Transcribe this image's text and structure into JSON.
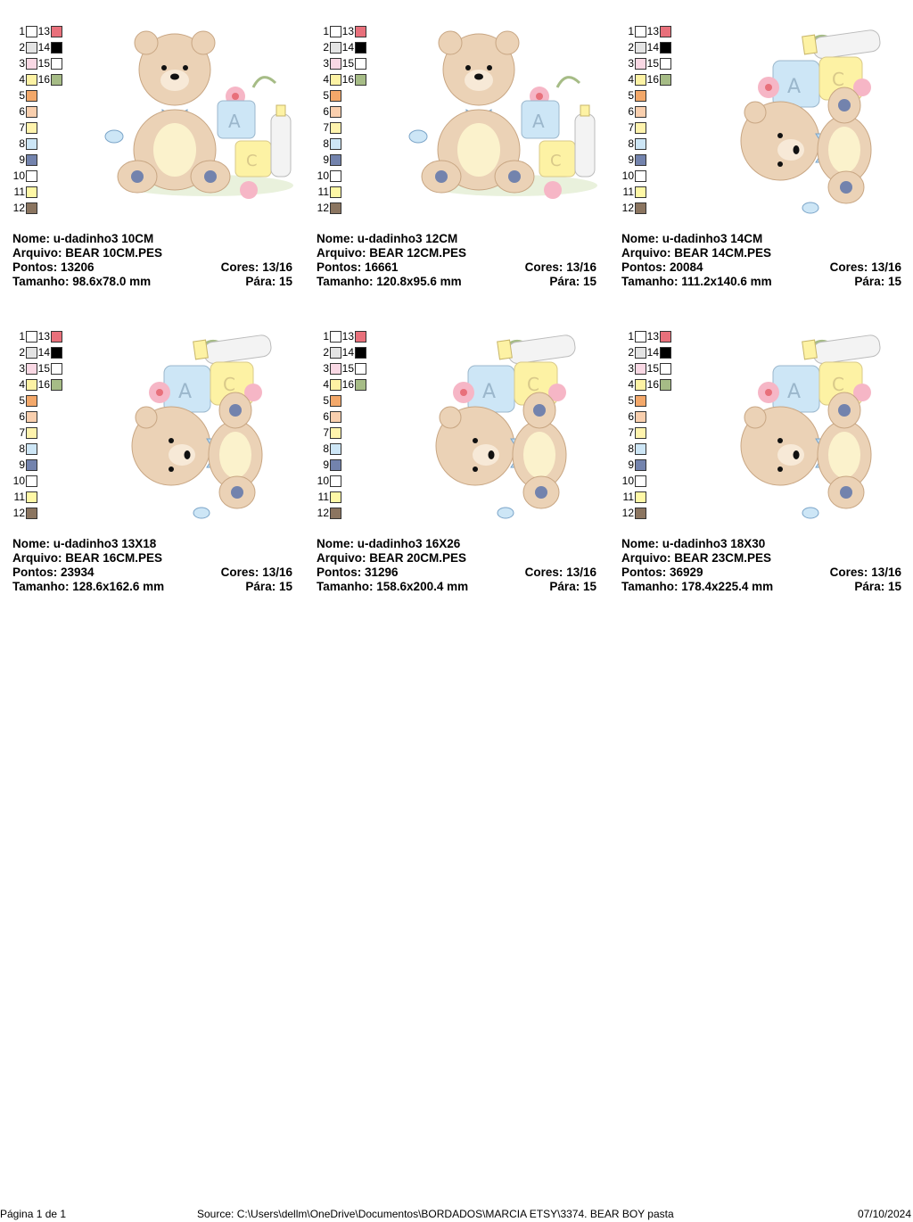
{
  "legend": {
    "left_numbers": [
      "1",
      "2",
      "3",
      "4",
      "5",
      "6",
      "7",
      "8",
      "9",
      "10",
      "11",
      "12"
    ],
    "left_colors": [
      "#ffffff",
      "#e4e4e4",
      "#f9d8e4",
      "#fdf2a4",
      "#f3a86a",
      "#f9cfae",
      "#fff3ad",
      "#cde6f6",
      "#7383ad",
      "#ffffff",
      "#fff8a6",
      "#8b7560"
    ],
    "right_numbers": [
      "13",
      "14",
      "15",
      "16"
    ],
    "right_colors": [
      "#e8707b",
      "#000000",
      "#ffffff",
      "#a6bc86"
    ]
  },
  "designs": [
    {
      "nome_label": "Nome:",
      "nome": "u-dadinho3 10CM",
      "arquivo_label": "Arquivo:",
      "arquivo": "BEAR 10CM.PES",
      "pontos_label": "Pontos:",
      "pontos": "13206",
      "cores_label": "Cores:",
      "cores": "13/16",
      "tamanho_label": "Tamanho:",
      "tamanho": "98.6x78.0 mm",
      "para_label": "Pára:",
      "para": "15",
      "orientation": "landscape"
    },
    {
      "nome_label": "Nome:",
      "nome": "u-dadinho3 12CM",
      "arquivo_label": "Arquivo:",
      "arquivo": "BEAR 12CM.PES",
      "pontos_label": "Pontos:",
      "pontos": "16661",
      "cores_label": "Cores:",
      "cores": "13/16",
      "tamanho_label": "Tamanho:",
      "tamanho": "120.8x95.6 mm",
      "para_label": "Pára:",
      "para": "15",
      "orientation": "landscape"
    },
    {
      "nome_label": "Nome:",
      "nome": "u-dadinho3 14CM",
      "arquivo_label": "Arquivo:",
      "arquivo": "BEAR 14CM.PES",
      "pontos_label": "Pontos:",
      "pontos": "20084",
      "cores_label": "Cores:",
      "cores": "13/16",
      "tamanho_label": "Tamanho:",
      "tamanho": "111.2x140.6 mm",
      "para_label": "Pára:",
      "para": "15",
      "orientation": "portrait"
    },
    {
      "nome_label": "Nome:",
      "nome": "u-dadinho3 13X18",
      "arquivo_label": "Arquivo:",
      "arquivo": "BEAR 16CM.PES",
      "pontos_label": "Pontos:",
      "pontos": "23934",
      "cores_label": "Cores:",
      "cores": "13/16",
      "tamanho_label": "Tamanho:",
      "tamanho": "128.6x162.6 mm",
      "para_label": "Pára:",
      "para": "15",
      "orientation": "portrait"
    },
    {
      "nome_label": "Nome:",
      "nome": "u-dadinho3 16X26",
      "arquivo_label": "Arquivo:",
      "arquivo": "BEAR 20CM.PES",
      "pontos_label": "Pontos:",
      "pontos": "31296",
      "cores_label": "Cores:",
      "cores": "13/16",
      "tamanho_label": "Tamanho:",
      "tamanho": "158.6x200.4 mm",
      "para_label": "Pára:",
      "para": "15",
      "orientation": "portrait"
    },
    {
      "nome_label": "Nome:",
      "nome": "u-dadinho3 18X30",
      "arquivo_label": "Arquivo:",
      "arquivo": "BEAR 23CM.PES",
      "pontos_label": "Pontos:",
      "pontos": "36929",
      "cores_label": "Cores:",
      "cores": "13/16",
      "tamanho_label": "Tamanho:",
      "tamanho": "178.4x225.4 mm",
      "para_label": "Pára:",
      "para": "15",
      "orientation": "portrait"
    }
  ],
  "footer": {
    "page": "Página 1 de 1",
    "source": "Source: C:\\Users\\dellm\\OneDrive\\Documentos\\BORDADOS\\MARCIA ETSY\\3374. BEAR BOY pasta",
    "date": "07/10/2024"
  }
}
